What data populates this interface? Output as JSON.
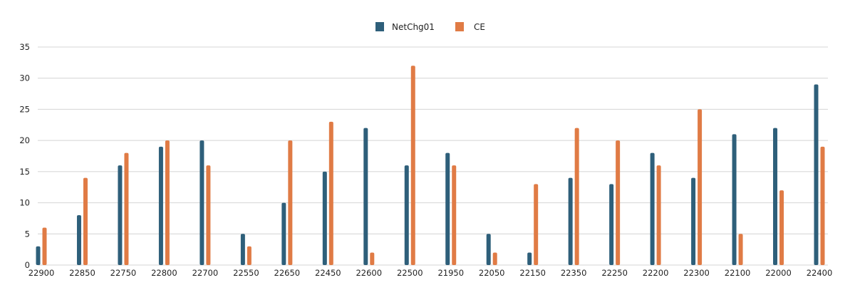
{
  "chart_data": {
    "type": "bar",
    "categories": [
      "22900",
      "22850",
      "22750",
      "22800",
      "22700",
      "22550",
      "22650",
      "22450",
      "22600",
      "22500",
      "21950",
      "22050",
      "22150",
      "22350",
      "22250",
      "22200",
      "22300",
      "22100",
      "22000",
      "22400"
    ],
    "series": [
      {
        "name": "NetChg01",
        "color": "#2e5f7a",
        "values": [
          3,
          8,
          16,
          19,
          20,
          5,
          10,
          15,
          22,
          16,
          18,
          5,
          2,
          14,
          13,
          18,
          14,
          21,
          22,
          29
        ]
      },
      {
        "name": "CE",
        "color": "#e07b45",
        "values": [
          6,
          14,
          18,
          20,
          16,
          3,
          20,
          23,
          2,
          32,
          16,
          2,
          13,
          22,
          20,
          16,
          25,
          5,
          12,
          19
        ]
      }
    ],
    "ylim": [
      0,
      35
    ],
    "yticks": [
      0,
      5,
      10,
      15,
      20,
      25,
      30,
      35
    ],
    "grid": true,
    "legend_position": "top-center"
  }
}
